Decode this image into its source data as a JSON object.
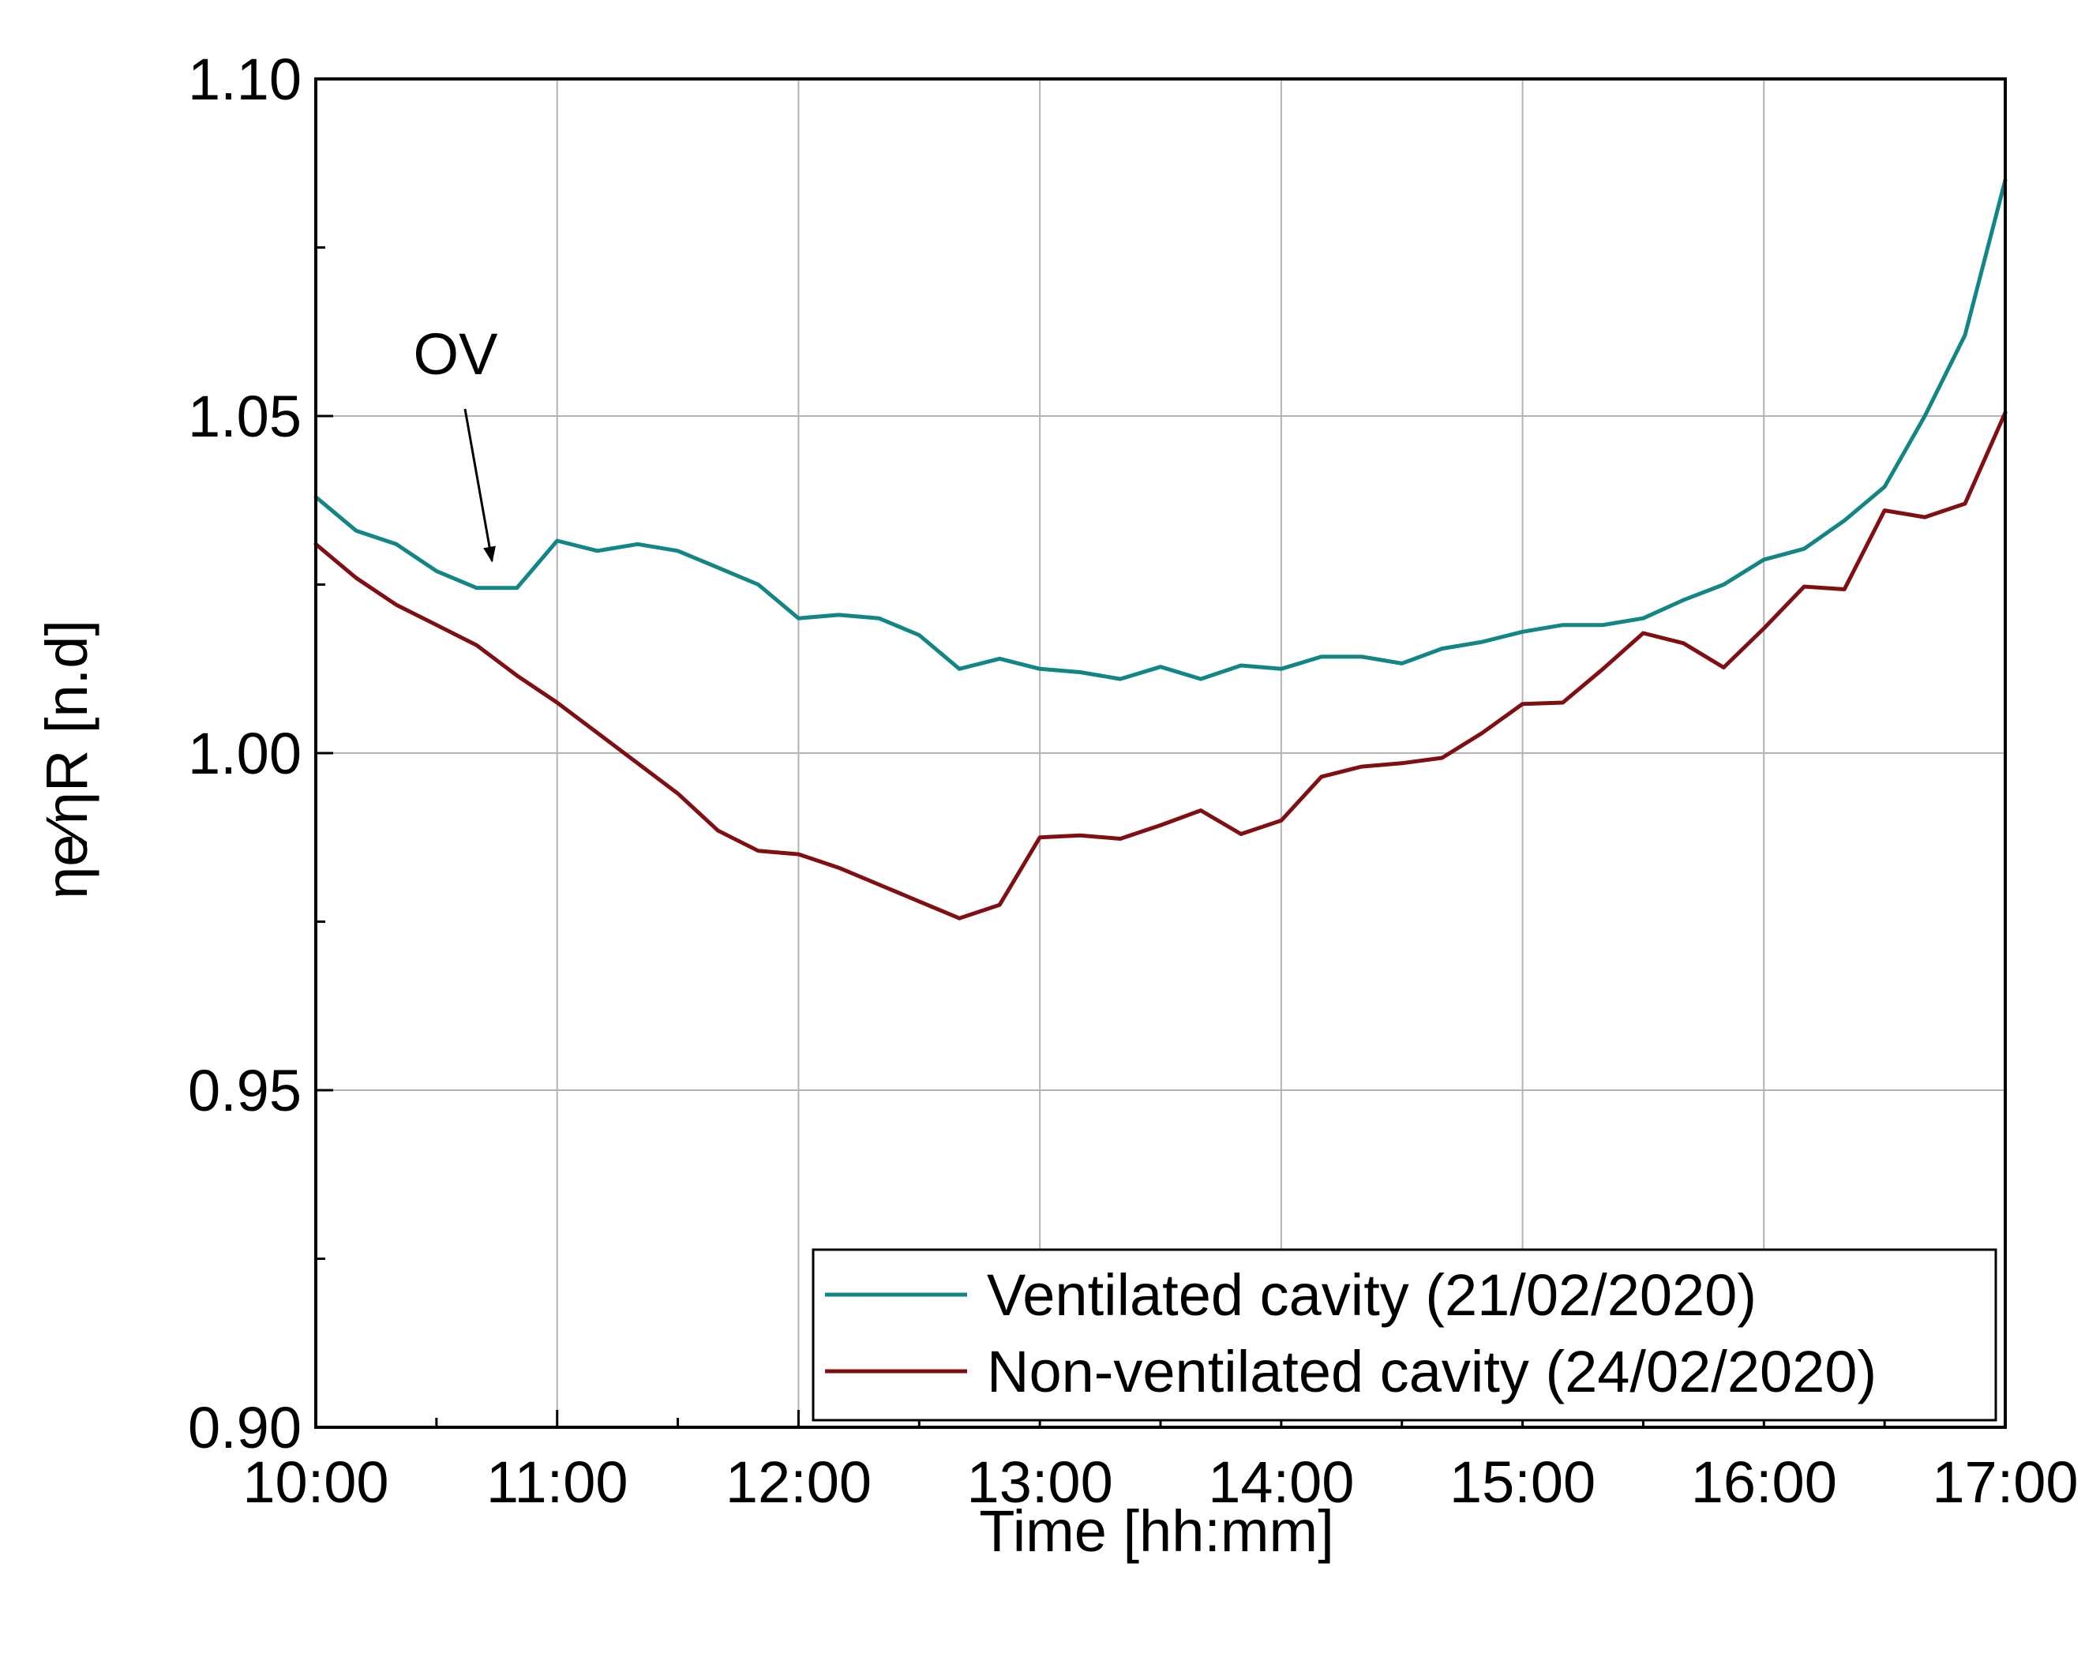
{
  "chart_data": {
    "type": "line",
    "title": "",
    "xlabel": "Time [hh:mm]",
    "ylabel": "ηe⁄ηR [n.d]",
    "x_unit": "hours",
    "xlim": [
      10,
      17
    ],
    "ylim": [
      0.9,
      1.1
    ],
    "grid": true,
    "x_ticks": [
      {
        "value": 10,
        "label": "10:00"
      },
      {
        "value": 11,
        "label": "11:00"
      },
      {
        "value": 12,
        "label": "12:00"
      },
      {
        "value": 13,
        "label": "13:00"
      },
      {
        "value": 14,
        "label": "14:00"
      },
      {
        "value": 15,
        "label": "15:00"
      },
      {
        "value": 16,
        "label": "16:00"
      },
      {
        "value": 17,
        "label": "17:00"
      }
    ],
    "y_ticks": [
      {
        "value": 0.9,
        "label": "0.90"
      },
      {
        "value": 0.95,
        "label": "0.95"
      },
      {
        "value": 1.0,
        "label": "1.00"
      },
      {
        "value": 1.05,
        "label": "1.05"
      },
      {
        "value": 1.1,
        "label": "1.10"
      }
    ],
    "y_minor_ticks": [
      0.925,
      0.975,
      1.025,
      1.075
    ],
    "x_minor_ticks": [
      10.5,
      11.5,
      12.5,
      13.5,
      14.5,
      15.5,
      16.5
    ],
    "legend_position": "bottom-right",
    "series": [
      {
        "name": "Ventilated cavity (21/02/2020)",
        "color": "#138585",
        "x": [
          10.0,
          10.1667,
          10.3333,
          10.5,
          10.6667,
          10.8333,
          11.0,
          11.1667,
          11.3333,
          11.5,
          11.6667,
          11.8333,
          12.0,
          12.1667,
          12.3333,
          12.5,
          12.6667,
          12.8333,
          13.0,
          13.1667,
          13.3333,
          13.5,
          13.6667,
          13.8333,
          14.0,
          14.1667,
          14.3333,
          14.5,
          14.6667,
          14.8333,
          15.0,
          15.1667,
          15.3333,
          15.5,
          15.6667,
          15.8333,
          16.0,
          16.1667,
          16.3333,
          16.5,
          16.6667,
          16.8333,
          17.0
        ],
        "values": [
          1.038,
          1.033,
          1.031,
          1.027,
          1.0245,
          1.0245,
          1.0315,
          1.03,
          1.031,
          1.03,
          1.0275,
          1.025,
          1.02,
          1.0205,
          1.02,
          1.0175,
          1.0125,
          1.014,
          1.0125,
          1.012,
          1.011,
          1.0128,
          1.011,
          1.013,
          1.0125,
          1.0143,
          1.0143,
          1.0133,
          1.0155,
          1.0165,
          1.018,
          1.019,
          1.019,
          1.02,
          1.0227,
          1.025,
          1.0287,
          1.0303,
          1.0345,
          1.0395,
          1.05,
          1.062,
          1.085
        ]
      },
      {
        "name": "Non-ventilated cavity (24/02/2020)",
        "color": "#7f0f12",
        "x": [
          10.0,
          10.1667,
          10.3333,
          10.5,
          10.6667,
          10.8333,
          11.0,
          11.1667,
          11.3333,
          11.5,
          11.6667,
          11.8333,
          12.0,
          12.1667,
          12.3333,
          12.5,
          12.6667,
          12.8333,
          13.0,
          13.1667,
          13.3333,
          13.5,
          13.6667,
          13.8333,
          14.0,
          14.1667,
          14.3333,
          14.5,
          14.6667,
          14.8333,
          15.0,
          15.1667,
          15.3333,
          15.5,
          15.6667,
          15.8333,
          16.0,
          16.1667,
          16.3333,
          16.5,
          16.6667,
          16.8333,
          17.0
        ],
        "values": [
          1.031,
          1.026,
          1.022,
          1.019,
          1.016,
          1.0115,
          1.0075,
          1.003,
          0.9985,
          0.994,
          0.9885,
          0.9855,
          0.985,
          0.983,
          0.9805,
          0.978,
          0.9755,
          0.9775,
          0.9875,
          0.9878,
          0.9873,
          0.9893,
          0.9915,
          0.988,
          0.99,
          0.9965,
          0.998,
          0.9985,
          0.9993,
          1.003,
          1.0073,
          1.0075,
          1.0125,
          1.0178,
          1.0163,
          1.0127,
          1.0185,
          1.0247,
          1.0243,
          1.036,
          1.035,
          1.037,
          1.0505
        ]
      }
    ],
    "annotations": [
      {
        "text": "OV",
        "arrow_to": {
          "x": 10.73,
          "y": 1.0285
        }
      }
    ]
  }
}
